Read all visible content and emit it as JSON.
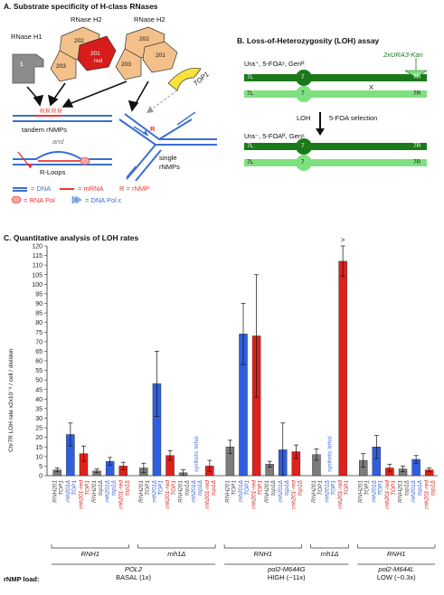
{
  "panel_a": {
    "title": "A. Substrate specificity of H-class RNases",
    "rnase_h1": "RNase H1",
    "rnase_h1_label": "1",
    "rnase_h2_left": "RNase H2",
    "rnase_h2_right": "RNase H2",
    "subunit_202": "202",
    "subunit_201": "201",
    "subunit_203": "203",
    "subunit_red": "red",
    "subunit_202b": "202",
    "subunit_201b": "201",
    "subunit_203b": "203",
    "top1": "TOP1",
    "rrrr": "RRRR",
    "r_single": "R",
    "tandem": "tandem rNMPs",
    "and": "and",
    "rloops": "R-Loops",
    "single": "single",
    "rnmps": "rNMPs",
    "legend_dna": "= DNA",
    "legend_mrna": "= mRNA",
    "legend_r": "R = rNMP",
    "legend_rnapol": "= RNA Pol",
    "legend_dnapol": "= DNA Pol ε",
    "colors": {
      "dna": "#3b6fd1",
      "rna": "#e53935",
      "rnase_tan": "#f4c08a",
      "rnase_red": "#d81b1b",
      "top1": "#f7e23a",
      "h1_grey": "#8c8c8c"
    }
  },
  "panel_b": {
    "title": "B. Loss-of-Heterozygosity (LOH) assay",
    "genotype_top": "Ura⁺, 5-FOAˢ, Genᴿ",
    "cassette": "2xURA3-Kan",
    "l7": "7L",
    "r7": "7R",
    "centromere": "7",
    "cross": "X",
    "loh_label": "LOH",
    "selection": "5-FOA selection",
    "genotype_bottom": "Ura⁻, 5-FOAᴿ, Genˢ",
    "colors": {
      "dark": "#1a7a1a",
      "light": "#7fe07f"
    }
  },
  "panel_c": {
    "title": "C. Quantitative analysis of LOH rates",
    "ylabel": "Chr7R LOH rate x2x10⁻⁸ / cell / division",
    "gt_marker": ">",
    "synthetic_lethal": "synthetic lethal",
    "rnmp_load_label": "rNMP load:",
    "groups": [
      {
        "label": "RNH1",
        "sub": "POL2",
        "sub2": "BASAL (1x)"
      },
      {
        "label": "rnh1Δ",
        "sub": "",
        "sub2": ""
      },
      {
        "label": "RNH1",
        "sub": "pol2-M644G",
        "sub2": "HIGH (~11x)"
      },
      {
        "label": "rnh1Δ",
        "sub": "",
        "sub2": ""
      },
      {
        "label": "RNH1",
        "sub": "pol2-M644L",
        "sub2": "LOW (~0.3x)"
      }
    ],
    "colors": {
      "grey": "#7b7b7b",
      "blue": "#2f5fe0",
      "red": "#e0201b",
      "lethal": "#4a78e8"
    }
  },
  "chart_data": {
    "type": "bar",
    "ylim": [
      0,
      120
    ],
    "yticks": [
      0,
      5,
      10,
      15,
      20,
      25,
      30,
      35,
      40,
      45,
      50,
      55,
      60,
      65,
      70,
      75,
      80,
      85,
      90,
      95,
      100,
      105,
      110,
      115,
      120
    ],
    "bars": [
      {
        "l1": "RNH201",
        "l2": "TOP1",
        "color": "grey",
        "value": 3,
        "err": 1
      },
      {
        "l1": "rnh201Δ",
        "l2": "TOP1",
        "color": "blue",
        "value": 21.5,
        "err": 6
      },
      {
        "l1": "rnh201-red",
        "l2": "TOP1",
        "color": "red",
        "value": 11.5,
        "err": 4
      },
      {
        "l1": "RNH201",
        "l2": "top1Δ",
        "color": "grey",
        "value": 2.5,
        "err": 1
      },
      {
        "l1": "rnh201Δ",
        "l2": "top1Δ",
        "color": "blue",
        "value": 7.5,
        "err": 2
      },
      {
        "l1": "rnh201-red",
        "l2": "top1Δ",
        "color": "red",
        "value": 5,
        "err": 2
      },
      {
        "l1": "RNH201",
        "l2": "TOP1",
        "color": "grey",
        "value": 4,
        "err": 2.5
      },
      {
        "l1": "rnh201Δ",
        "l2": "TOP1",
        "color": "blue",
        "value": 48,
        "err": 17
      },
      {
        "l1": "rnh201-red",
        "l2": "TOP1",
        "color": "red",
        "value": 10.5,
        "err": 2.5
      },
      {
        "l1": "RNH201",
        "l2": "top1Δ",
        "color": "grey",
        "value": 1.5,
        "err": 1.5
      },
      {
        "l1": "rnh201Δ",
        "l2": "top1Δ",
        "color": "lethal",
        "value": null,
        "err": null
      },
      {
        "l1": "rnh201-red",
        "l2": "top1Δ",
        "color": "red",
        "value": 5,
        "err": 3
      },
      {
        "l1": "RNH201",
        "l2": "TOP1",
        "color": "grey",
        "value": 15,
        "err": 3.5
      },
      {
        "l1": "rnh201Δ",
        "l2": "TOP1",
        "color": "blue",
        "value": 74,
        "err": 16
      },
      {
        "l1": "rnh201-red",
        "l2": "TOP1",
        "color": "red",
        "value": 73,
        "err": 32
      },
      {
        "l1": "RNH201",
        "l2": "top1Δ",
        "color": "grey",
        "value": 6,
        "err": 1.5
      },
      {
        "l1": "rnh201Δ",
        "l2": "top1Δ",
        "color": "blue",
        "value": 13.5,
        "err": 14
      },
      {
        "l1": "rnh201-red",
        "l2": "top1Δ",
        "color": "red",
        "value": 12.5,
        "err": 3.5
      },
      {
        "l1": "RNH201",
        "l2": "TOP1",
        "color": "grey",
        "value": 11,
        "err": 3
      },
      {
        "l1": "rnh201Δ",
        "l2": "TOP1",
        "color": "lethal",
        "value": null,
        "err": null
      },
      {
        "l1": "rnh201-red",
        "l2": "TOP1",
        "color": "red",
        "value": 112,
        "err": 8
      },
      {
        "l1": "RNH201",
        "l2": "TOP1",
        "color": "grey",
        "value": 8,
        "err": 3.5
      },
      {
        "l1": "rnh201Δ",
        "l2": "TOP1",
        "color": "blue",
        "value": 15,
        "err": 6
      },
      {
        "l1": "rnh201-red",
        "l2": "TOP1",
        "color": "red",
        "value": 4,
        "err": 2
      },
      {
        "l1": "RNH201",
        "l2": "top1Δ",
        "color": "grey",
        "value": 3.5,
        "err": 1.5
      },
      {
        "l1": "rnh201Δ",
        "l2": "top1Δ",
        "color": "blue",
        "value": 8.5,
        "err": 2
      },
      {
        "l1": "rnh201-red",
        "l2": "top1Δ",
        "color": "red",
        "value": 3,
        "err": 1
      }
    ],
    "group_sizes": [
      6,
      6,
      6,
      3,
      6
    ]
  }
}
